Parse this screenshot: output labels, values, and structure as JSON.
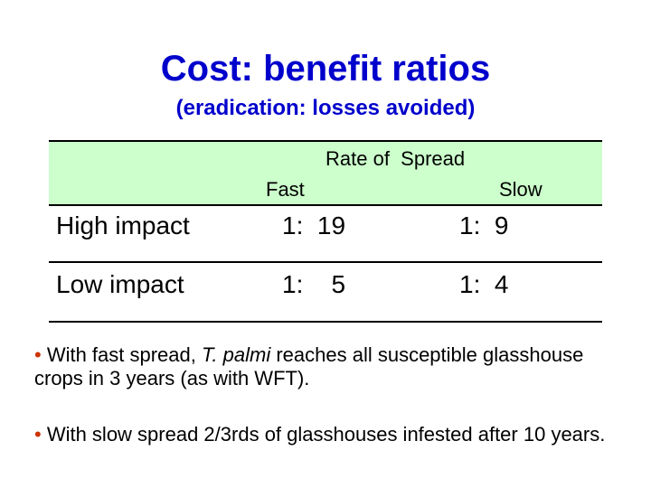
{
  "title": "Cost: benefit ratios",
  "subtitle": "(eradication: losses avoided)",
  "table": {
    "group_header": "Rate of  Spread",
    "columns": [
      "Fast",
      "Slow"
    ],
    "rows": [
      {
        "label": "High impact",
        "fast": "1:  19",
        "slow": "1:  9"
      },
      {
        "label": "Low impact",
        "fast": "1:    5",
        "slow": "1:  4"
      }
    ]
  },
  "bullets": [
    {
      "marker": "•",
      "before": " With fast spread, ",
      "emphasis": "T. palmi",
      "after": " reaches all susceptible glasshouse crops in 3 years (as with WFT)."
    },
    {
      "marker": "•",
      "text": " With slow spread 2/3rds of glasshouses infested after 10 years."
    }
  ],
  "colors": {
    "heading": "#0000cc",
    "header_band": "#ccffcc",
    "bullet_marker": "#cc3300"
  }
}
